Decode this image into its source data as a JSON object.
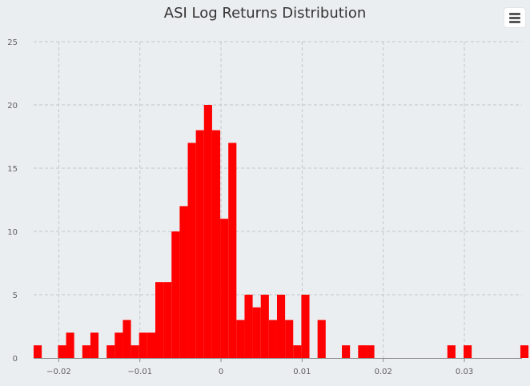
{
  "chart_data": {
    "type": "bar",
    "title": "ASI Log Returns Distribution",
    "xlabel": "",
    "ylabel": "",
    "xlim": [
      -0.0231,
      0.0371
    ],
    "ylim": [
      0,
      25
    ],
    "x_ticks": [
      -0.02,
      -0.01,
      0,
      0.01,
      0.02,
      0.03
    ],
    "x_tick_labels": [
      "−0.02",
      "−0.01",
      "0",
      "0.01",
      "0.02",
      "0.03"
    ],
    "y_ticks": [
      0,
      5,
      10,
      15,
      20,
      25
    ],
    "y_tick_labels": [
      "0",
      "5",
      "10",
      "15",
      "20",
      "25"
    ],
    "grid": true,
    "color": "#ff0000",
    "bin_start": -0.0231,
    "bin_width": 0.001,
    "values": [
      1,
      0,
      0,
      1,
      2,
      0,
      1,
      2,
      0,
      1,
      2,
      3,
      1,
      2,
      2,
      6,
      6,
      10,
      12,
      17,
      18,
      20,
      18,
      11,
      17,
      3,
      5,
      4,
      5,
      3,
      5,
      3,
      1,
      5,
      0,
      3,
      0,
      0,
      1,
      0,
      1,
      1,
      0,
      0,
      0,
      0,
      0,
      0,
      0,
      0,
      0,
      1,
      0,
      1,
      0,
      0,
      0,
      0,
      0,
      0,
      1
    ]
  },
  "menu": {
    "icon": "hamburger-menu-icon"
  }
}
